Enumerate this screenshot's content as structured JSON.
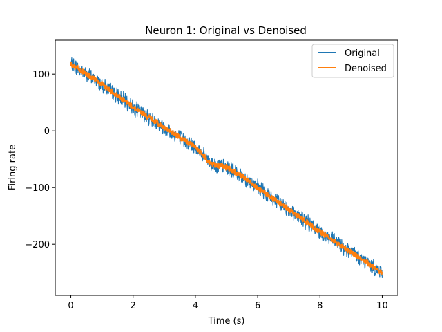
{
  "chart_data": {
    "type": "line",
    "title": "Neuron 1: Original vs Denoised",
    "xlabel": "Time (s)",
    "ylabel": "Firing rate",
    "xlim": [
      -0.5,
      10.5
    ],
    "ylim": [
      -290,
      160
    ],
    "xticks": [
      0,
      2,
      4,
      6,
      8,
      10
    ],
    "yticks": [
      -200,
      -100,
      0,
      100
    ],
    "xtick_labels": [
      "0",
      "2",
      "4",
      "6",
      "8",
      "10"
    ],
    "ytick_labels": [
      "−200",
      "−100",
      "0",
      "100"
    ],
    "grid": false,
    "legend_position": "top-right",
    "series": [
      {
        "name": "Original",
        "color": "#1f77b4",
        "x": [
          0,
          0.5,
          1,
          1.5,
          2,
          2.5,
          3,
          3.5,
          4,
          4.5,
          5,
          5.5,
          6,
          6.5,
          7,
          7.5,
          8,
          8.5,
          9,
          9.5,
          10
        ],
        "y": [
          118,
          100,
          82,
          62,
          42,
          24,
          6,
          -12,
          -28,
          -58,
          -64,
          -80,
          -100,
          -120,
          -138,
          -158,
          -178,
          -196,
          -214,
          -232,
          -250
        ],
        "noise_amplitude": 12
      },
      {
        "name": "Denoised",
        "color": "#ff7f0e",
        "x": [
          0,
          0.5,
          1,
          1.5,
          2,
          2.5,
          3,
          3.5,
          4,
          4.5,
          5,
          5.5,
          6,
          6.5,
          7,
          7.5,
          8,
          8.5,
          9,
          9.5,
          10
        ],
        "y": [
          118,
          100,
          82,
          62,
          42,
          24,
          6,
          -12,
          -28,
          -58,
          -64,
          -80,
          -100,
          -120,
          -138,
          -158,
          -178,
          -196,
          -214,
          -232,
          -250
        ],
        "noise_amplitude": 4
      }
    ]
  }
}
